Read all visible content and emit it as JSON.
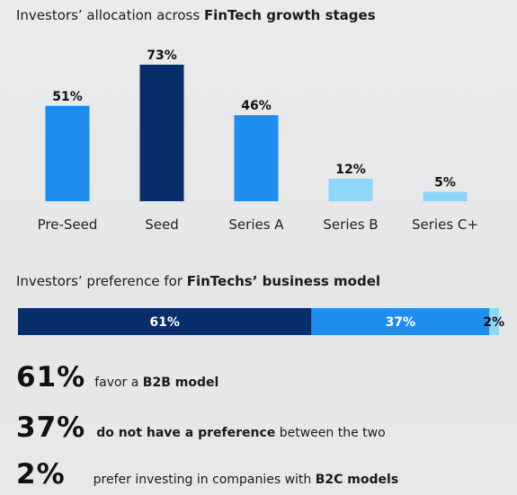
{
  "chart_data": [
    {
      "type": "bar",
      "title_prefix": "Investors’ allocation across ",
      "title_bold": "FinTech growth stages",
      "categories": [
        "Pre-Seed",
        "Seed",
        "Series A",
        "Series B",
        "Series C+"
      ],
      "values": [
        51,
        73,
        46,
        12,
        5
      ],
      "value_labels": [
        "51%",
        "73%",
        "46%",
        "12%",
        "5%"
      ],
      "colors": [
        "#1f8ded",
        "#072d6b",
        "#1f8ded",
        "#8ed6f7",
        "#8ed6f7"
      ],
      "ylim": [
        0,
        73
      ]
    },
    {
      "type": "bar",
      "orientation": "horizontal-stacked",
      "title_prefix": "Investors’ preference for ",
      "title_bold": "FinTechs’ business model",
      "values": [
        61,
        37,
        2
      ],
      "value_labels": [
        "61%",
        "37%",
        "2%"
      ],
      "colors": [
        "#072d6b",
        "#1f8ded",
        "#8ed6f7"
      ]
    }
  ],
  "stats": [
    {
      "big": "61%",
      "pre": "favor a ",
      "bold": "B2B model",
      "post": ""
    },
    {
      "big": "37%",
      "pre": "",
      "bold": "do not have a preference",
      "post": " between the two"
    },
    {
      "big": "2%",
      "pre": "prefer investing in companies with ",
      "bold": "B2C models",
      "post": ""
    }
  ]
}
